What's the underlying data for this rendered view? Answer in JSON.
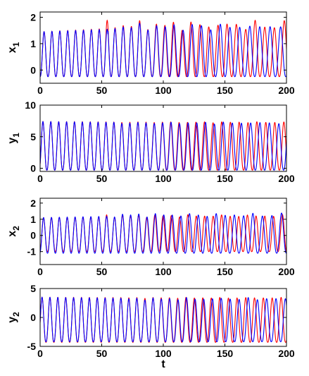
{
  "chart_data": [
    {
      "type": "line",
      "ylabel": "x",
      "ylabel_sub": "1",
      "xlabel": "",
      "xlim": [
        0,
        200
      ],
      "ylim": [
        -0.5,
        2.2
      ],
      "xticks": [
        0,
        50,
        100,
        150,
        200
      ],
      "yticks": [
        0,
        1,
        2
      ],
      "series": [
        {
          "color": "#ff0000",
          "period_start": 6.4,
          "period_end": 8.0,
          "min": -0.25,
          "max_start": 1.45,
          "max_end": 1.9,
          "phase": 0.0,
          "chaos_from": 50
        },
        {
          "color": "#0000ff",
          "period_start": 6.4,
          "period_end": 8.6,
          "min": -0.25,
          "max_start": 1.45,
          "max_end": 1.8,
          "phase": 0.0,
          "chaos_from": 55
        }
      ]
    },
    {
      "type": "line",
      "ylabel": "y",
      "ylabel_sub": "1",
      "xlabel": "",
      "xlim": [
        0,
        200
      ],
      "ylim": [
        -0.5,
        10
      ],
      "xticks": [
        0,
        50,
        100,
        150,
        200
      ],
      "yticks": [
        0,
        5,
        10
      ],
      "series": [
        {
          "color": "#ff0000",
          "period_start": 6.4,
          "period_end": 7.4,
          "min": -0.3,
          "max_start": 7.4,
          "max_end": 7.2,
          "phase": 0.9,
          "chaos_from": 55
        },
        {
          "color": "#0000ff",
          "period_start": 6.4,
          "period_end": 7.8,
          "min": -0.3,
          "max_start": 7.4,
          "max_end": 7.0,
          "phase": 0.9,
          "chaos_from": 60
        }
      ]
    },
    {
      "type": "line",
      "ylabel": "x",
      "ylabel_sub": "2",
      "xlabel": "",
      "xlim": [
        0,
        200
      ],
      "ylim": [
        -1.8,
        2.3
      ],
      "xticks": [
        0,
        50,
        100,
        150,
        200
      ],
      "yticks": [
        -1,
        0,
        1,
        2
      ],
      "series": [
        {
          "color": "#ff0000",
          "period_start": 6.4,
          "period_end": 7.2,
          "min": -1.0,
          "max_start": 1.1,
          "max_end": 1.3,
          "phase": 0.4,
          "chaos_from": 50
        },
        {
          "color": "#0000ff",
          "period_start": 6.4,
          "period_end": 7.9,
          "min": -1.1,
          "max_start": 1.1,
          "max_end": 1.4,
          "phase": 0.4,
          "chaos_from": 55
        }
      ]
    },
    {
      "type": "line",
      "ylabel": "y",
      "ylabel_sub": "2",
      "xlabel": "t",
      "xlim": [
        0,
        200
      ],
      "ylim": [
        -5,
        5
      ],
      "xticks": [
        0,
        50,
        100,
        150,
        200
      ],
      "yticks": [
        -5,
        0,
        5
      ],
      "series": [
        {
          "color": "#ff0000",
          "period_start": 6.4,
          "period_end": 7.3,
          "min": -4.3,
          "max_start": 3.5,
          "max_end": 3.3,
          "phase": 1.6,
          "chaos_from": 60
        },
        {
          "color": "#0000ff",
          "period_start": 6.4,
          "period_end": 7.7,
          "min": -4.2,
          "max_start": 3.5,
          "max_end": 3.0,
          "phase": 1.6,
          "chaos_from": 65
        }
      ]
    }
  ]
}
